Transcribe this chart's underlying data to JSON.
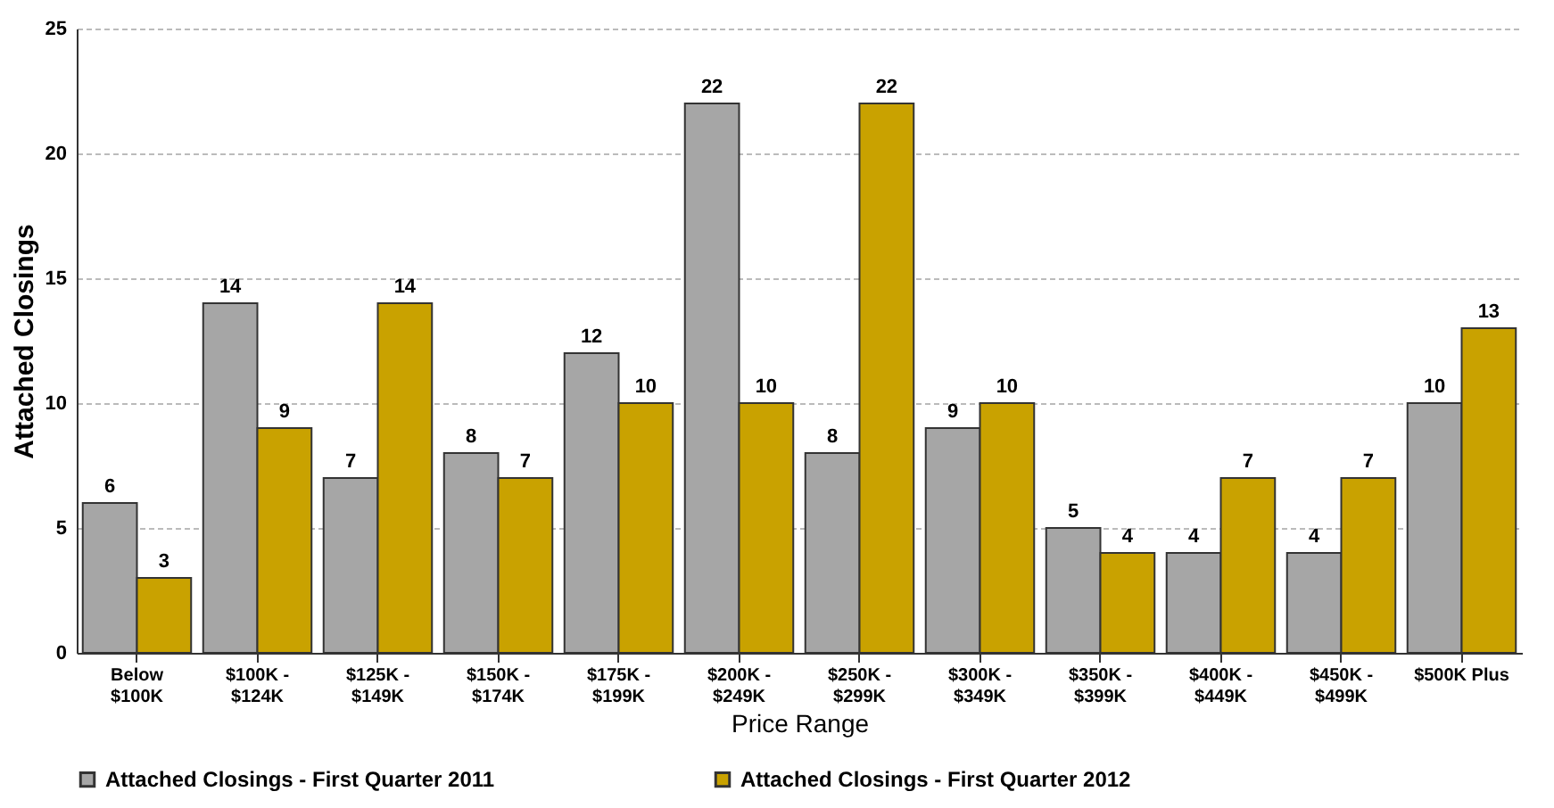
{
  "chart_data": {
    "type": "bar",
    "xlabel": "Price Range",
    "ylabel": "Attached Closings",
    "categories": [
      "Below $100K",
      "$100K - $124K",
      "$125K - $149K",
      "$150K - $174K",
      "$175K - $199K",
      "$200K - $249K",
      "$250K - $299K",
      "$300K - $349K",
      "$350K - $399K",
      "$400K - $449K",
      "$450K - $499K",
      "$500K Plus"
    ],
    "series": [
      {
        "name": "Attached Closings - First Quarter 2011",
        "color": "#a6a6a6",
        "values": [
          6,
          14,
          7,
          8,
          12,
          22,
          8,
          9,
          5,
          4,
          4,
          10
        ]
      },
      {
        "name": "Attached Closings - First Quarter 2012",
        "color": "#c9a200",
        "values": [
          3,
          9,
          14,
          7,
          10,
          10,
          22,
          10,
          4,
          7,
          7,
          13
        ]
      }
    ],
    "ylim": [
      0,
      25
    ],
    "yticks": [
      0,
      5,
      10,
      15,
      20,
      25
    ],
    "grid": "y",
    "legend": "bottom",
    "data_labels": true
  }
}
